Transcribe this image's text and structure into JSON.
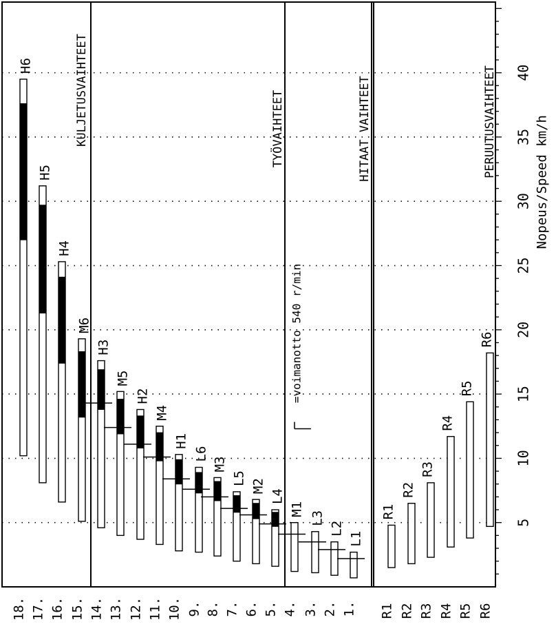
{
  "chart_data": {
    "type": "bar",
    "orientation": "horizontal",
    "xlabel": "Nopeus/Speed km/h",
    "xticks": [
      5,
      10,
      15,
      20,
      25,
      30,
      35,
      40
    ],
    "xlim": [
      0,
      45.5
    ],
    "grid": true,
    "groups": [
      {
        "label": "KULJETUSVAIHTEET"
      },
      {
        "label": "TYÖVAIHTEET"
      },
      {
        "label": "HITAAT VAIHTEET"
      },
      {
        "label": "PERUUTUSVAIHTEET"
      }
    ],
    "pto_label": "=voimanotto 540 r/min",
    "forward_gears": [
      {
        "row": "18.",
        "gear": "H6",
        "min": 10.2,
        "max": 39.5,
        "dark_start": 27.0,
        "dark_end": 37.6,
        "pto": null,
        "group": "KULJETUSVAIHTEET"
      },
      {
        "row": "17.",
        "gear": "H5",
        "min": 8.1,
        "max": 31.2,
        "dark_start": 21.3,
        "dark_end": 29.7,
        "pto": null,
        "group": "KULJETUSVAIHTEET"
      },
      {
        "row": "16.",
        "gear": "H4",
        "min": 6.6,
        "max": 25.3,
        "dark_start": 17.4,
        "dark_end": 24.1,
        "pto": null,
        "group": "KULJETUSVAIHTEET"
      },
      {
        "row": "15.",
        "gear": "M6",
        "min": 5.1,
        "max": 19.3,
        "dark_start": 13.2,
        "dark_end": 18.3,
        "pto": null,
        "group": "KULJETUSVAIHTEET"
      },
      {
        "row": "14.",
        "gear": "H3",
        "min": 4.6,
        "max": 17.6,
        "dark_start": 13.8,
        "dark_end": 16.9,
        "pto": 14.3,
        "group": "TYÖVAIHTEET"
      },
      {
        "row": "13.",
        "gear": "M5",
        "min": 4.0,
        "max": 15.2,
        "dark_start": 11.9,
        "dark_end": 14.6,
        "pto": 12.4,
        "group": "TYÖVAIHTEET"
      },
      {
        "row": "12.",
        "gear": "H2",
        "min": 3.7,
        "max": 13.8,
        "dark_start": 10.8,
        "dark_end": 13.3,
        "pto": 11.1,
        "group": "TYÖVAIHTEET"
      },
      {
        "row": "11.",
        "gear": "M4",
        "min": 3.3,
        "max": 12.5,
        "dark_start": 9.8,
        "dark_end": 12.0,
        "pto": 10.1,
        "group": "TYÖVAIHTEET"
      },
      {
        "row": "10.",
        "gear": "H1",
        "min": 2.8,
        "max": 10.3,
        "dark_start": 8.0,
        "dark_end": 9.9,
        "pto": 8.4,
        "group": "TYÖVAIHTEET"
      },
      {
        "row": "9.",
        "gear": "L6",
        "min": 2.7,
        "max": 9.3,
        "dark_start": 7.3,
        "dark_end": 8.9,
        "pto": 7.6,
        "group": "TYÖVAIHTEET"
      },
      {
        "row": "8.",
        "gear": "M3",
        "min": 2.4,
        "max": 8.5,
        "dark_start": 6.7,
        "dark_end": 8.2,
        "pto": 7.0,
        "group": "TYÖVAIHTEET"
      },
      {
        "row": "7.",
        "gear": "L5",
        "min": 2.0,
        "max": 7.4,
        "dark_start": 5.8,
        "dark_end": 7.1,
        "pto": 6.1,
        "group": "TYÖVAIHTEET"
      },
      {
        "row": "6.",
        "gear": "M2",
        "min": 1.8,
        "max": 6.8,
        "dark_start": 5.3,
        "dark_end": 6.5,
        "pto": 5.6,
        "group": "TYÖVAIHTEET"
      },
      {
        "row": "5.",
        "gear": "L4",
        "min": 1.6,
        "max": 6.0,
        "dark_start": 4.7,
        "dark_end": 5.8,
        "pto": 4.9,
        "group": "TYÖVAIHTEET"
      },
      {
        "row": "4.",
        "gear": "M1",
        "min": 1.2,
        "max": 5.0,
        "dark_start": null,
        "dark_end": null,
        "pto": 4.1,
        "group": "HITAAT VAIHTEET"
      },
      {
        "row": "3.",
        "gear": "L3",
        "min": 1.1,
        "max": 4.3,
        "dark_start": null,
        "dark_end": null,
        "pto": 3.5,
        "group": "HITAAT VAIHTEET"
      },
      {
        "row": "2.",
        "gear": "L2",
        "min": 0.9,
        "max": 3.5,
        "dark_start": null,
        "dark_end": null,
        "pto": 2.9,
        "group": "HITAAT VAIHTEET"
      },
      {
        "row": "1.",
        "gear": "L1",
        "min": 0.7,
        "max": 2.7,
        "dark_start": null,
        "dark_end": null,
        "pto": 2.2,
        "group": "HITAAT VAIHTEET"
      }
    ],
    "reverse_gears": [
      {
        "row": "R1",
        "gear": "R1",
        "min": 1.5,
        "max": 4.8
      },
      {
        "row": "R2",
        "gear": "R2",
        "min": 1.8,
        "max": 6.5
      },
      {
        "row": "R3",
        "gear": "R3",
        "min": 2.3,
        "max": 8.1
      },
      {
        "row": "R4",
        "gear": "R4",
        "min": 3.1,
        "max": 11.7
      },
      {
        "row": "R5",
        "gear": "R5",
        "min": 3.8,
        "max": 14.4
      },
      {
        "row": "R6",
        "gear": "R6",
        "min": 4.7,
        "max": 18.2
      }
    ]
  }
}
